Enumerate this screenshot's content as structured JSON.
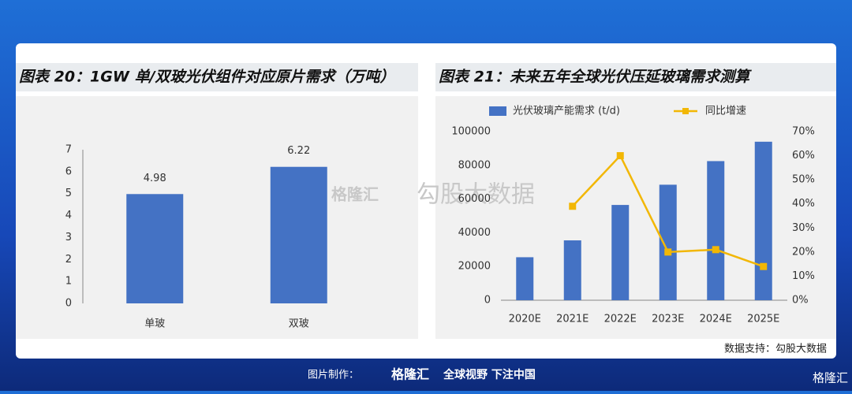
{
  "chart_data": [
    {
      "type": "bar",
      "title": "图表 20：1GW 单/双玻光伏组件对应原片需求（万吨）",
      "categories": [
        "单玻",
        "双玻"
      ],
      "values": [
        4.98,
        6.22
      ],
      "color": "#4472c4",
      "ylim": [
        0,
        7
      ],
      "yticks": [
        0,
        1,
        2,
        3,
        4,
        5,
        6,
        7
      ]
    },
    {
      "type": "combo",
      "title": "图表 21：未来五年全球光伏压延玻璃需求测算",
      "categories": [
        "2020E",
        "2021E",
        "2022E",
        "2023E",
        "2024E",
        "2025E"
      ],
      "series": [
        {
          "name": "光伏玻璃产能需求 (t/d)",
          "type": "bar",
          "color": "#4472c4",
          "values": [
            25500,
            35500,
            56500,
            68500,
            82500,
            94000
          ]
        },
        {
          "name": "同比增速",
          "type": "line",
          "axis": "y2",
          "color": "#f2b705",
          "values": [
            null,
            39,
            60,
            20,
            21,
            14
          ]
        }
      ],
      "ylim": [
        0,
        100000
      ],
      "yticks": [
        0,
        20000,
        40000,
        60000,
        80000,
        100000
      ],
      "y2lim": [
        0,
        70
      ],
      "y2ticks": [
        {
          "value": 0,
          "label": "0%"
        },
        {
          "value": 10,
          "label": "10%"
        },
        {
          "value": 20,
          "label": "20%"
        },
        {
          "value": 30,
          "label": "30%"
        },
        {
          "value": 40,
          "label": "40%"
        },
        {
          "value": 50,
          "label": "50%"
        },
        {
          "value": 60,
          "label": "60%"
        },
        {
          "value": 70,
          "label": "70%"
        }
      ],
      "source": "数据支持：勾股大数据"
    }
  ],
  "watermark": {
    "brand": "格隆汇",
    "partner": "勾股大数据"
  },
  "footer": {
    "made_by": "图片制作：",
    "brand": "格隆汇",
    "slogan": "全球视野 下注中国",
    "corner_brand": "格隆汇"
  }
}
